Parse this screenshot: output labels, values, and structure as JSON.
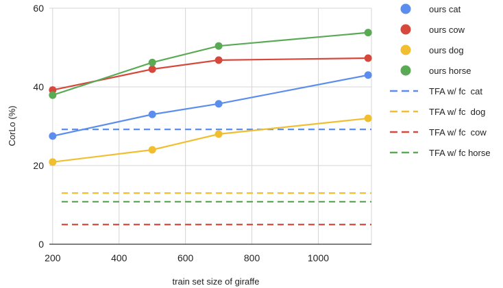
{
  "chart_data": {
    "type": "line",
    "title": "",
    "xlabel": "train set size of giraffe",
    "ylabel": "CorLo (%)",
    "xlim": [
      190,
      1160
    ],
    "ylim": [
      0,
      60
    ],
    "xticks": [
      200,
      400,
      600,
      800,
      1000
    ],
    "yticks": [
      0,
      20,
      40,
      60
    ],
    "x": [
      200,
      500,
      700,
      1150
    ],
    "grid": true,
    "legend_position": "right",
    "series": [
      {
        "name": "ours cat",
        "kind": "line-markers",
        "color": "#5b8def",
        "values": [
          27.5,
          33,
          35.7,
          43
        ]
      },
      {
        "name": "ours cow",
        "kind": "line-markers",
        "color": "#d6473c",
        "values": [
          39.2,
          44.5,
          46.8,
          47.3
        ]
      },
      {
        "name": "ours dog",
        "kind": "line-markers",
        "color": "#f1be30",
        "values": [
          20.9,
          24,
          28,
          32
        ]
      },
      {
        "name": "ours horse",
        "kind": "line-markers",
        "color": "#5aaa55",
        "values": [
          37.9,
          46.2,
          50.4,
          53.8
        ]
      },
      {
        "name": "TFA w/ fc  cat",
        "kind": "dashed",
        "color": "#5b8def",
        "value": 29.2
      },
      {
        "name": "TFA w/ fc  dog",
        "kind": "dashed",
        "color": "#f1be30",
        "value": 13
      },
      {
        "name": "TFA w/ fc  cow",
        "kind": "dashed",
        "color": "#d6473c",
        "value": 5
      },
      {
        "name": "TFA w/ fc horse",
        "kind": "dashed",
        "color": "#5aaa55",
        "value": 10.8
      }
    ]
  }
}
